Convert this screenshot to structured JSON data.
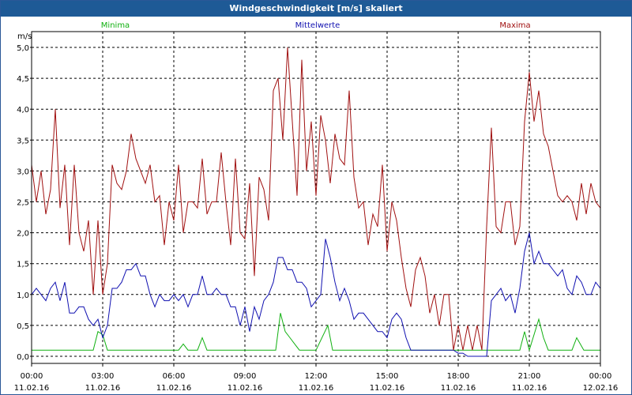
{
  "window": {
    "title": "Windgeschwindigkeit [m/s] skaliert"
  },
  "colors": {
    "minima": "#10b010",
    "mittelwerte": "#1010b0",
    "maxima": "#a01010",
    "grid": "#000000",
    "title_bg": "#1e5a96"
  },
  "chart_data": {
    "type": "line",
    "title": "Windgeschwindigkeit [m/s] skaliert",
    "ylabel": "m/s",
    "ylim": [
      0,
      5
    ],
    "xlim_hours": [
      0,
      24
    ],
    "grid": true,
    "legend_placement": "top",
    "y_ticks": [
      "0,0",
      "0,5",
      "1,0",
      "1,5",
      "2,0",
      "2,5",
      "3,0",
      "3,5",
      "4,0",
      "4,5",
      "5,0"
    ],
    "x_ticks": [
      {
        "time": "00:00",
        "date": "11.02.16"
      },
      {
        "time": "03:00",
        "date": "11.02.16"
      },
      {
        "time": "06:00",
        "date": "11.02.16"
      },
      {
        "time": "09:00",
        "date": "11.02.16"
      },
      {
        "time": "12:00",
        "date": "11.02.16"
      },
      {
        "time": "15:00",
        "date": "11.02.16"
      },
      {
        "time": "18:00",
        "date": "11.02.16"
      },
      {
        "time": "21:00",
        "date": "11.02.16"
      },
      {
        "time": "00:00",
        "date": "12.02.16"
      }
    ],
    "series": [
      {
        "name": "Minima",
        "x": [
          0,
          2.6,
          2.8,
          3.0,
          3.2,
          6.2,
          6.4,
          6.6,
          7.0,
          7.2,
          7.4,
          10.3,
          10.5,
          10.7,
          10.9,
          11.1,
          11.3,
          11.5,
          12.0,
          12.5,
          12.7,
          20.6,
          20.8,
          21.0,
          21.4,
          21.6,
          21.8,
          22.8,
          23.0,
          23.3,
          23.6,
          24.0
        ],
        "y": [
          0.1,
          0.1,
          0.4,
          0.35,
          0.1,
          0.1,
          0.2,
          0.1,
          0.1,
          0.3,
          0.1,
          0.1,
          0.7,
          0.4,
          0.3,
          0.2,
          0.1,
          0.1,
          0.1,
          0.5,
          0.1,
          0.1,
          0.4,
          0.1,
          0.6,
          0.3,
          0.1,
          0.1,
          0.3,
          0.1,
          0.1,
          0.1
        ]
      },
      {
        "name": "Mittelwerte",
        "x": [
          0,
          0.2,
          0.4,
          0.6,
          0.8,
          1.0,
          1.2,
          1.4,
          1.6,
          1.8,
          2.0,
          2.2,
          2.4,
          2.6,
          2.8,
          3.0,
          3.2,
          3.4,
          3.6,
          3.8,
          4.0,
          4.2,
          4.4,
          4.6,
          4.8,
          5.0,
          5.2,
          5.4,
          5.6,
          5.8,
          6.0,
          6.2,
          6.4,
          6.6,
          6.8,
          7.0,
          7.2,
          7.4,
          7.6,
          7.8,
          8.0,
          8.2,
          8.4,
          8.6,
          8.8,
          9.0,
          9.2,
          9.4,
          9.6,
          9.8,
          10.0,
          10.2,
          10.4,
          10.6,
          10.8,
          11.0,
          11.2,
          11.4,
          11.6,
          11.8,
          12.0,
          12.2,
          12.4,
          12.6,
          12.8,
          13.0,
          13.2,
          13.4,
          13.6,
          13.8,
          14.0,
          14.2,
          14.4,
          14.6,
          14.8,
          15.0,
          15.2,
          15.4,
          15.6,
          15.8,
          16.0,
          16.2,
          16.4,
          16.6,
          16.8,
          17.0,
          17.2,
          17.4,
          17.6,
          17.8,
          18.0,
          18.2,
          18.4,
          18.6,
          18.8,
          19.0,
          19.2,
          19.4,
          19.6,
          19.8,
          20.0,
          20.2,
          20.4,
          20.6,
          20.8,
          21.0,
          21.2,
          21.4,
          21.6,
          21.8,
          22.0,
          22.2,
          22.4,
          22.6,
          22.8,
          23.0,
          23.2,
          23.4,
          23.6,
          23.8,
          24.0
        ],
        "y": [
          1.0,
          1.1,
          1.0,
          0.9,
          1.1,
          1.2,
          0.9,
          1.2,
          0.7,
          0.7,
          0.8,
          0.8,
          0.6,
          0.5,
          0.6,
          0.3,
          0.5,
          1.1,
          1.1,
          1.2,
          1.4,
          1.4,
          1.5,
          1.3,
          1.3,
          1.0,
          0.8,
          1.0,
          0.9,
          0.9,
          1.0,
          0.9,
          1.0,
          0.8,
          1.0,
          1.0,
          1.3,
          1.0,
          1.0,
          1.1,
          1.0,
          1.0,
          0.8,
          0.8,
          0.5,
          0.8,
          0.4,
          0.8,
          0.6,
          0.9,
          1.0,
          1.2,
          1.6,
          1.6,
          1.4,
          1.4,
          1.2,
          1.2,
          1.1,
          0.8,
          0.9,
          1.0,
          1.9,
          1.6,
          1.2,
          0.9,
          1.1,
          0.9,
          0.6,
          0.7,
          0.7,
          0.6,
          0.5,
          0.4,
          0.4,
          0.3,
          0.6,
          0.7,
          0.6,
          0.3,
          0.1,
          0.1,
          0.1,
          0.1,
          0.1,
          0.1,
          0.1,
          0.1,
          0.1,
          0.1,
          0.05,
          0.05,
          0.0,
          0.0,
          0.0,
          0.0,
          0.0,
          0.9,
          1.0,
          1.1,
          0.9,
          1.0,
          0.7,
          1.1,
          1.7,
          2.0,
          1.5,
          1.7,
          1.5,
          1.5,
          1.4,
          1.3,
          1.4,
          1.1,
          1.0,
          1.3,
          1.2,
          1.0,
          1.0,
          1.2,
          1.1
        ],
        "note_unused": ""
      },
      {
        "name": "Maxima",
        "x": [
          0,
          0.2,
          0.4,
          0.6,
          0.8,
          1.0,
          1.2,
          1.4,
          1.6,
          1.8,
          2.0,
          2.2,
          2.4,
          2.6,
          2.8,
          3.0,
          3.2,
          3.4,
          3.6,
          3.8,
          4.0,
          4.2,
          4.4,
          4.6,
          4.8,
          5.0,
          5.2,
          5.4,
          5.6,
          5.8,
          6.0,
          6.2,
          6.4,
          6.6,
          6.8,
          7.0,
          7.2,
          7.4,
          7.6,
          7.8,
          8.0,
          8.2,
          8.4,
          8.6,
          8.8,
          9.0,
          9.2,
          9.4,
          9.6,
          9.8,
          10.0,
          10.2,
          10.4,
          10.6,
          10.8,
          11.0,
          11.2,
          11.4,
          11.6,
          11.8,
          12.0,
          12.2,
          12.4,
          12.6,
          12.8,
          13.0,
          13.2,
          13.4,
          13.6,
          13.8,
          14.0,
          14.2,
          14.4,
          14.6,
          14.8,
          15.0,
          15.2,
          15.4,
          15.6,
          15.8,
          16.0,
          16.2,
          16.4,
          16.6,
          16.8,
          17.0,
          17.2,
          17.4,
          17.6,
          17.8,
          18.0,
          18.2,
          18.4,
          18.6,
          18.8,
          19.0,
          19.2,
          19.4,
          19.6,
          19.8,
          20.0,
          20.2,
          20.4,
          20.6,
          20.8,
          21.0,
          21.2,
          21.4,
          21.6,
          21.8,
          22.0,
          22.2,
          22.4,
          22.6,
          22.8,
          23.0,
          23.2,
          23.4,
          23.6,
          23.8,
          24.0
        ],
        "y": [
          3.1,
          2.5,
          3.0,
          2.3,
          2.7,
          4.0,
          2.4,
          3.1,
          1.8,
          3.1,
          2.0,
          1.7,
          2.2,
          1.0,
          2.2,
          1.0,
          1.5,
          3.1,
          2.8,
          2.7,
          3.0,
          3.6,
          3.2,
          3.0,
          2.8,
          3.1,
          2.5,
          2.6,
          1.8,
          2.5,
          2.2,
          3.1,
          2.0,
          2.5,
          2.5,
          2.4,
          3.2,
          2.3,
          2.5,
          2.5,
          3.3,
          2.5,
          1.8,
          3.2,
          2.0,
          1.9,
          2.8,
          1.3,
          2.9,
          2.7,
          2.2,
          4.3,
          4.5,
          3.5,
          5.0,
          3.8,
          2.6,
          4.8,
          3.0,
          3.8,
          2.6,
          3.9,
          3.5,
          2.8,
          3.6,
          3.2,
          3.1,
          4.3,
          2.9,
          2.4,
          2.5,
          1.8,
          2.3,
          2.1,
          3.1,
          1.7,
          2.5,
          2.2,
          1.6,
          1.1,
          0.8,
          1.4,
          1.6,
          1.3,
          0.7,
          1.0,
          0.5,
          1.0,
          1.0,
          0.1,
          0.5,
          0.1,
          0.5,
          0.1,
          0.5,
          0.1,
          2.1,
          3.7,
          2.1,
          2.0,
          2.5,
          2.5,
          1.8,
          2.1,
          3.8,
          4.6,
          3.8,
          4.3,
          3.6,
          3.4,
          3.0,
          2.6,
          2.5,
          2.6,
          2.5,
          2.2,
          2.8,
          2.3,
          2.8,
          2.5,
          2.4
        ]
      }
    ]
  }
}
